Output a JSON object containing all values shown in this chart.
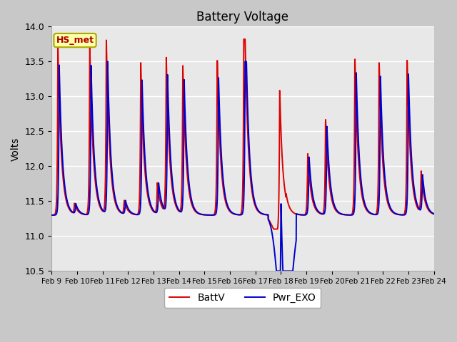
{
  "title": "Battery Voltage",
  "ylabel": "Volts",
  "ylim": [
    10.5,
    14.0
  ],
  "yticks": [
    10.5,
    11.0,
    11.5,
    12.0,
    12.5,
    13.0,
    13.5,
    14.0
  ],
  "xtick_labels": [
    "Feb 9",
    "Feb 10",
    "Feb 11",
    "Feb 12",
    "Feb 13",
    "Feb 14",
    "Feb 15",
    "Feb 16",
    "Feb 17",
    "Feb 18",
    "Feb 19",
    "Feb 20",
    "Feb 21",
    "Feb 22",
    "Feb 23",
    "Feb 24"
  ],
  "legend_labels": [
    "BattV",
    "Pwr_EXO"
  ],
  "color_batt": "#dd0000",
  "color_pwr": "#0000cc",
  "annotation_text": "HS_met",
  "annotation_fc": "#ffffaa",
  "annotation_ec": "#aaaa00",
  "annotation_color": "#aa0000",
  "fig_bg": "#c8c8c8",
  "axes_bg": "#e8e8e8",
  "grid_color": "#ffffff",
  "title_fontsize": 12,
  "ylabel_fontsize": 10,
  "tick_fontsize": 9,
  "xtick_fontsize": 7.5,
  "linewidth": 1.4,
  "peaks_batt": [
    0.25,
    0.9,
    1.5,
    2.15,
    2.85,
    3.5,
    4.15,
    4.5,
    5.15,
    6.5,
    7.55,
    8.95,
    10.05,
    10.75,
    11.9,
    12.85,
    13.95,
    14.5
  ],
  "heights_batt": [
    2.45,
    0.15,
    2.45,
    2.5,
    0.2,
    2.2,
    0.45,
    2.25,
    2.15,
    2.25,
    3.55,
    2.05,
    0.9,
    1.4,
    2.3,
    2.25,
    2.25,
    0.6
  ],
  "peaks_pwr": [
    0.3,
    0.95,
    1.55,
    2.2,
    2.9,
    3.55,
    4.2,
    4.55,
    5.2,
    6.55,
    7.6,
    9.0,
    10.1,
    10.8,
    11.95,
    12.9,
    14.0,
    14.55
  ],
  "heights_pwr": [
    2.15,
    0.15,
    2.15,
    2.2,
    0.2,
    1.95,
    0.45,
    2.0,
    1.95,
    2.0,
    3.1,
    1.8,
    0.85,
    1.3,
    2.1,
    2.05,
    2.05,
    0.55
  ],
  "base_voltage": 11.3,
  "rise_rate": 45,
  "fall_rate": 7.5
}
